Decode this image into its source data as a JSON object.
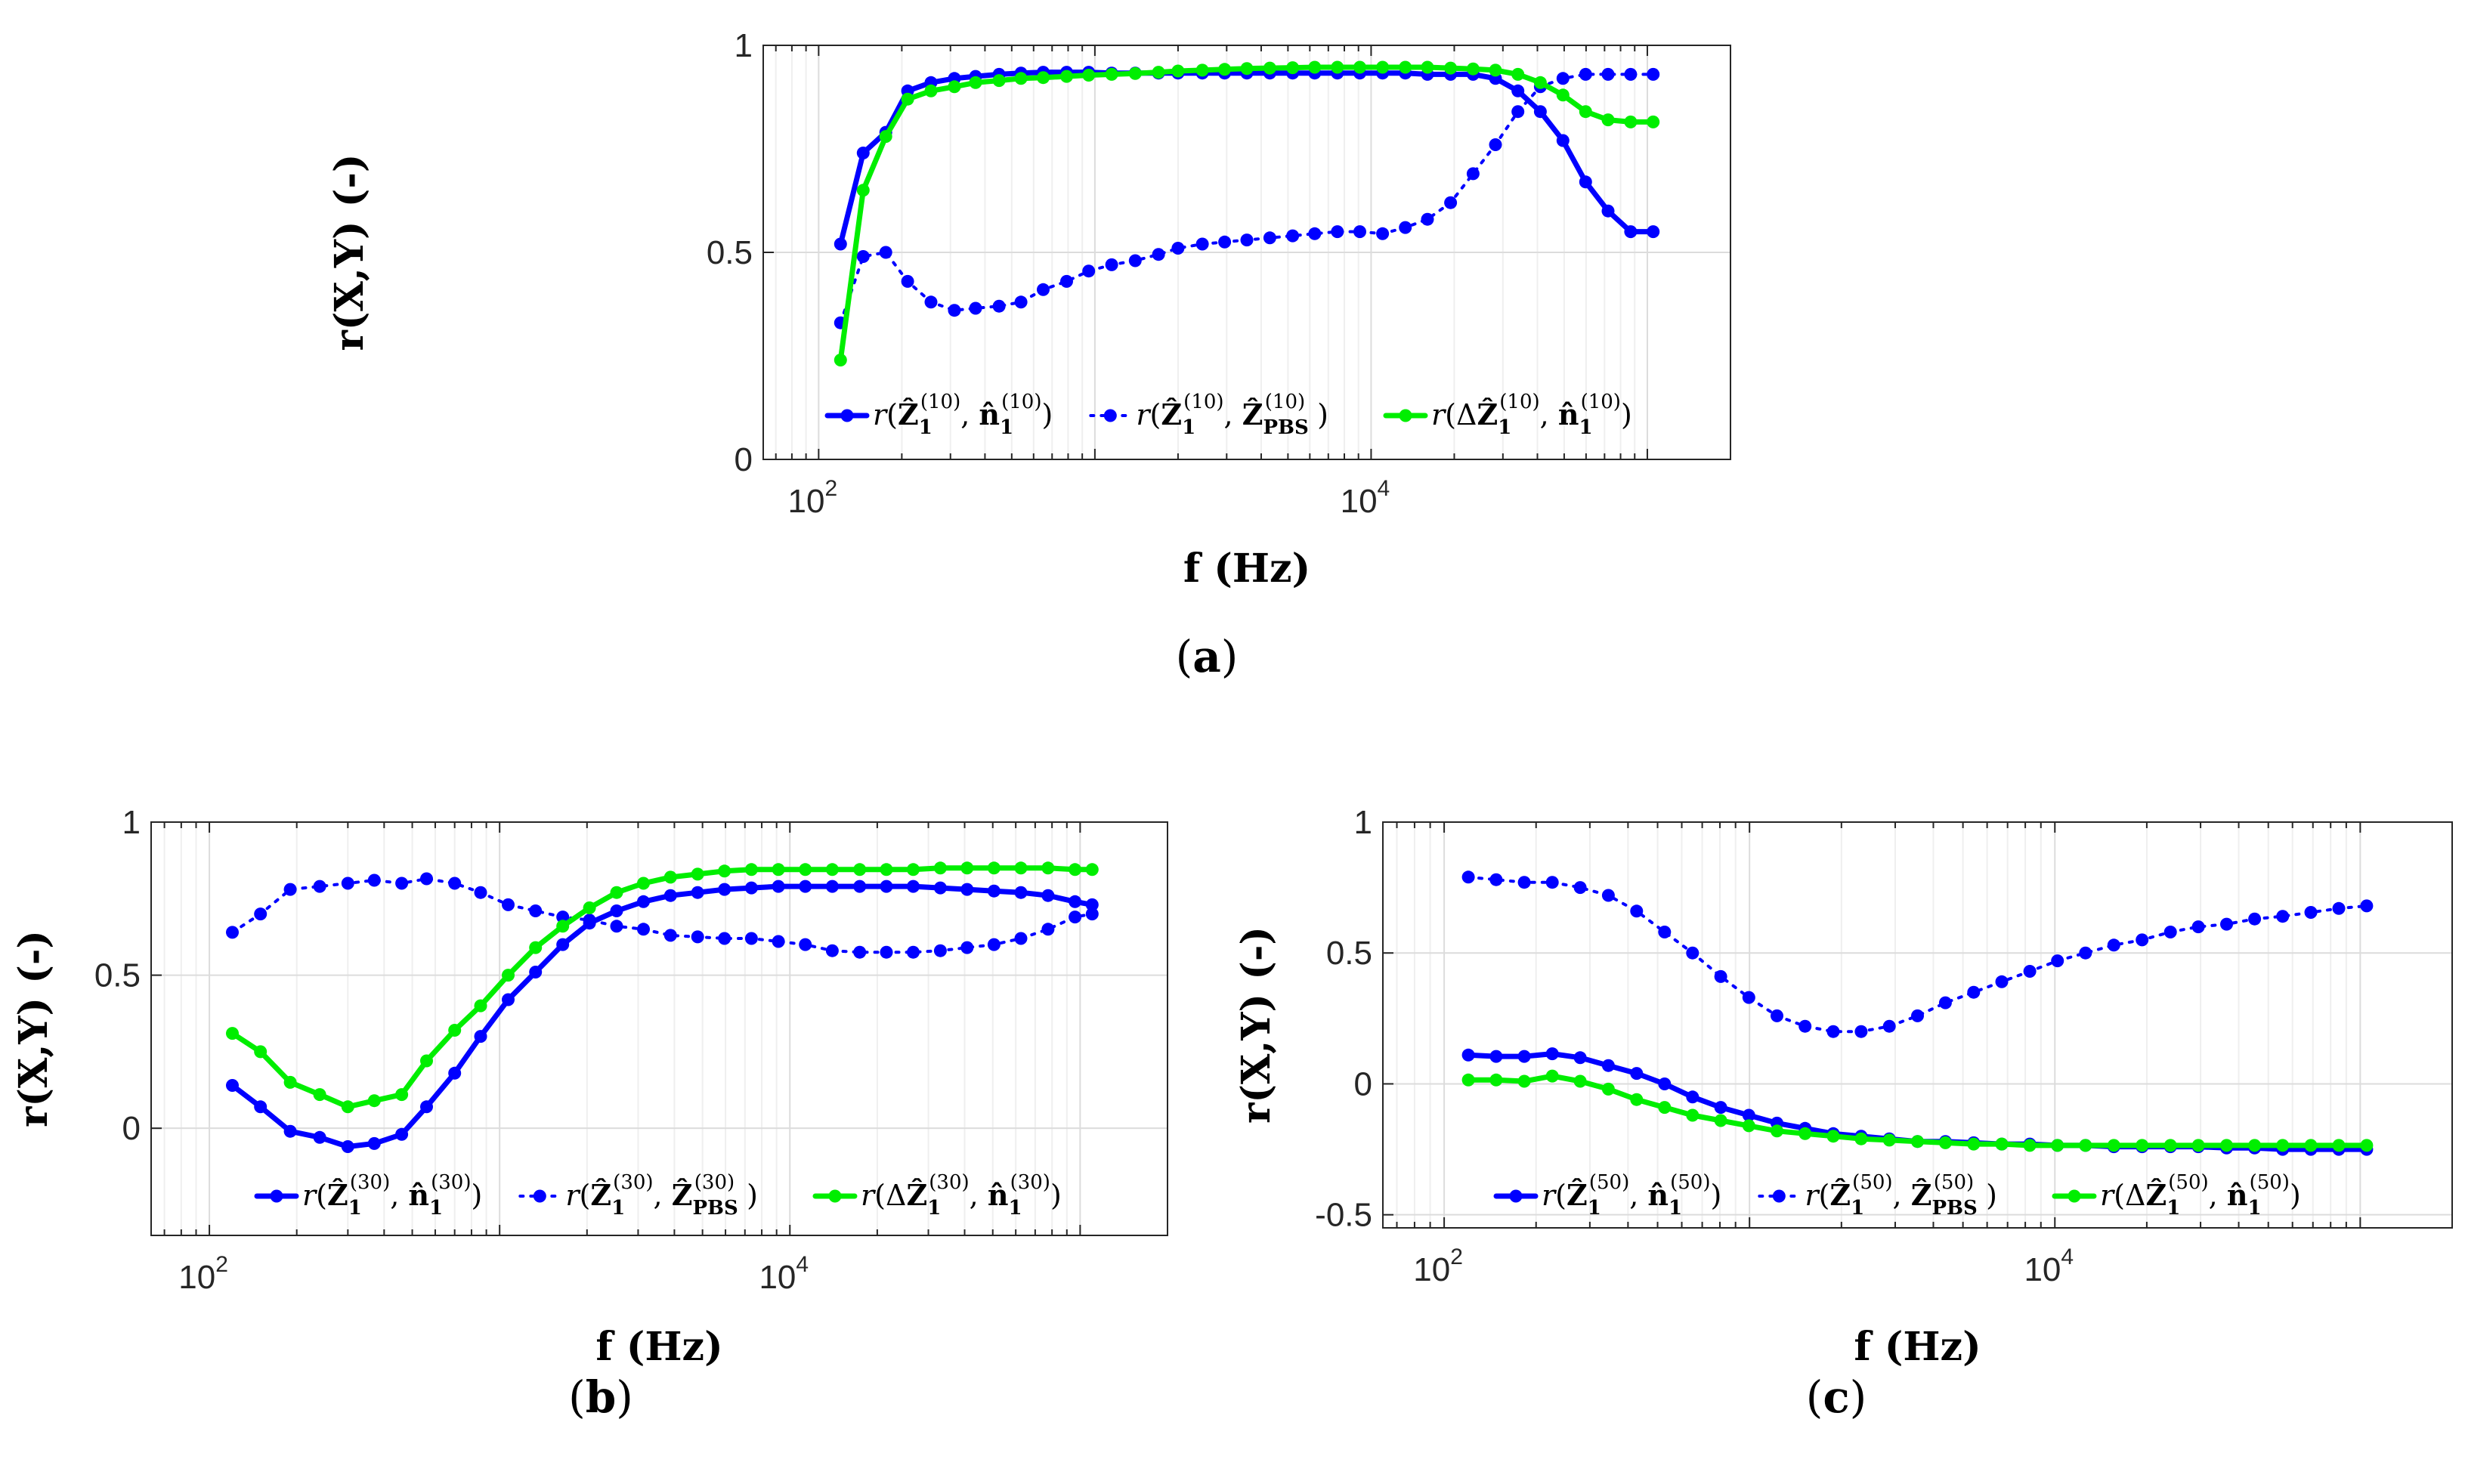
{
  "chart_data": [
    {
      "type": "line",
      "panel": "(a)",
      "xlabel": "f (Hz)",
      "ylabel": "r(X,Y) (-)",
      "xscale": "log",
      "xlim": [
        63,
        200000
      ],
      "ylim": [
        0,
        1
      ],
      "yticks": [
        0,
        0.5,
        1
      ],
      "ytick_labels": [
        "0",
        "0.5",
        "1"
      ],
      "xticks": [
        100,
        10000
      ],
      "xtick_labels": [
        "10",
        "10"
      ],
      "xtick_exponents": [
        "2",
        "4"
      ],
      "grid": true,
      "legend_position": "bottom-center",
      "x": [
        120,
        145,
        175,
        210,
        255,
        310,
        370,
        450,
        540,
        650,
        790,
        950,
        1150,
        1400,
        1700,
        2000,
        2450,
        2950,
        3550,
        4300,
        5200,
        6250,
        7550,
        9100,
        11000,
        13300,
        16000,
        19400,
        23400,
        28200,
        34000,
        41000,
        49500,
        59800,
        72100,
        87000,
        105000
      ],
      "series": [
        {
          "name": "r(Ẑ1(10), n̂1(10))",
          "color": "#0000ff",
          "style": "solid",
          "values": [
            0.52,
            0.74,
            0.79,
            0.89,
            0.91,
            0.92,
            0.925,
            0.93,
            0.933,
            0.935,
            0.935,
            0.935,
            0.933,
            0.933,
            0.933,
            0.933,
            0.933,
            0.933,
            0.933,
            0.933,
            0.933,
            0.933,
            0.933,
            0.933,
            0.933,
            0.933,
            0.93,
            0.93,
            0.93,
            0.92,
            0.89,
            0.84,
            0.77,
            0.67,
            0.6,
            0.55,
            0.55
          ]
        },
        {
          "name": "r(Ẑ1(10), ẐPBS(10))",
          "color": "#0000ff",
          "style": "dotted",
          "values": [
            0.33,
            0.49,
            0.5,
            0.43,
            0.38,
            0.36,
            0.365,
            0.37,
            0.38,
            0.41,
            0.43,
            0.455,
            0.47,
            0.48,
            0.495,
            0.51,
            0.52,
            0.525,
            0.53,
            0.535,
            0.54,
            0.545,
            0.55,
            0.55,
            0.545,
            0.56,
            0.58,
            0.62,
            0.69,
            0.76,
            0.84,
            0.9,
            0.92,
            0.93,
            0.93,
            0.93,
            0.93
          ]
        },
        {
          "name": "r(ΔẐ1(10), n̂1(10))",
          "color": "#00ee00",
          "style": "solid",
          "values": [
            0.24,
            0.65,
            0.78,
            0.87,
            0.89,
            0.9,
            0.91,
            0.915,
            0.92,
            0.922,
            0.925,
            0.928,
            0.93,
            0.932,
            0.935,
            0.938,
            0.94,
            0.942,
            0.944,
            0.945,
            0.946,
            0.947,
            0.947,
            0.947,
            0.947,
            0.947,
            0.947,
            0.945,
            0.943,
            0.94,
            0.93,
            0.91,
            0.88,
            0.84,
            0.82,
            0.815,
            0.815
          ]
        }
      ],
      "legend": {
        "entries": [
          {
            "func": "r",
            "open": "(",
            "lhs_pre": "",
            "lhs": "Ẑ",
            "lhs_sub": "1",
            "lhs_sup": "(10)",
            "comma": ", ",
            "rhs": "n̂",
            "rhs_sub": "1",
            "rhs_sup": "(10)",
            "close": ")"
          },
          {
            "func": "r",
            "open": "(",
            "lhs_pre": "",
            "lhs": "Ẑ",
            "lhs_sub": "1",
            "lhs_sup": "(10)",
            "comma": ", ",
            "rhs": "Ẑ",
            "rhs_sub": "PBS",
            "rhs_sup": "(10)",
            "close": ")"
          },
          {
            "func": "r",
            "open": "(",
            "lhs_pre": "Δ",
            "lhs": "Ẑ",
            "lhs_sub": "1",
            "lhs_sup": "(10)",
            "comma": ", ",
            "rhs": "n̂",
            "rhs_sub": "1",
            "rhs_sup": "(10)",
            "close": ")"
          }
        ]
      }
    },
    {
      "type": "line",
      "panel": "(b)",
      "xlabel": "f (Hz)",
      "ylabel": "r(X,Y) (-)",
      "xscale": "log",
      "xlim": [
        63,
        200000
      ],
      "ylim": [
        -0.35,
        1
      ],
      "yticks": [
        0,
        0.5,
        1
      ],
      "ytick_labels": [
        "0",
        "0.5",
        "1"
      ],
      "xticks": [
        100,
        10000
      ],
      "xtick_labels": [
        "10",
        "10"
      ],
      "xtick_exponents": [
        "2",
        "4"
      ],
      "grid": true,
      "legend_position": "bottom-center",
      "x": [
        120,
        150,
        190,
        240,
        300,
        370,
        460,
        560,
        700,
        860,
        1070,
        1330,
        1650,
        2040,
        2530,
        3130,
        3880,
        4810,
        5950,
        7370,
        9130,
        11300,
        14000,
        17400,
        21500,
        26600,
        33000,
        40800,
        50500,
        62500,
        77500,
        96000,
        110000
      ],
      "series": [
        {
          "name": "r(Ẑ1(30), n̂1(30))",
          "color": "#0000ff",
          "style": "solid",
          "values": [
            0.14,
            0.07,
            -0.01,
            -0.03,
            -0.06,
            -0.05,
            -0.02,
            0.07,
            0.18,
            0.3,
            0.42,
            0.51,
            0.6,
            0.67,
            0.71,
            0.74,
            0.76,
            0.77,
            0.78,
            0.785,
            0.79,
            0.79,
            0.79,
            0.79,
            0.79,
            0.79,
            0.785,
            0.78,
            0.775,
            0.77,
            0.76,
            0.74,
            0.73
          ]
        },
        {
          "name": "r(Ẑ1(30), ẐPBS(30))",
          "color": "#0000ff",
          "style": "dotted",
          "values": [
            0.64,
            0.7,
            0.78,
            0.79,
            0.8,
            0.81,
            0.8,
            0.815,
            0.8,
            0.77,
            0.73,
            0.71,
            0.69,
            0.68,
            0.66,
            0.65,
            0.63,
            0.625,
            0.62,
            0.62,
            0.61,
            0.6,
            0.58,
            0.575,
            0.575,
            0.575,
            0.58,
            0.59,
            0.6,
            0.62,
            0.65,
            0.69,
            0.7
          ]
        },
        {
          "name": "r(ΔẐ1(30), n̂1(30))",
          "color": "#00ee00",
          "style": "solid",
          "values": [
            0.31,
            0.25,
            0.15,
            0.11,
            0.07,
            0.09,
            0.11,
            0.22,
            0.32,
            0.4,
            0.5,
            0.59,
            0.66,
            0.72,
            0.77,
            0.8,
            0.82,
            0.83,
            0.84,
            0.845,
            0.845,
            0.845,
            0.845,
            0.845,
            0.845,
            0.845,
            0.85,
            0.85,
            0.85,
            0.85,
            0.85,
            0.845,
            0.845
          ]
        }
      ],
      "legend": {
        "entries": [
          {
            "func": "r",
            "open": "(",
            "lhs_pre": "",
            "lhs": "Ẑ",
            "lhs_sub": "1",
            "lhs_sup": "(30)",
            "comma": ", ",
            "rhs": "n̂",
            "rhs_sub": "1",
            "rhs_sup": "(30)",
            "close": ")"
          },
          {
            "func": "r",
            "open": "(",
            "lhs_pre": "",
            "lhs": "Ẑ",
            "lhs_sub": "1",
            "lhs_sup": "(30)",
            "comma": ", ",
            "rhs": "Ẑ",
            "rhs_sub": "PBS",
            "rhs_sup": "(30)",
            "close": ")"
          },
          {
            "func": "r",
            "open": "(",
            "lhs_pre": "Δ",
            "lhs": "Ẑ",
            "lhs_sub": "1",
            "lhs_sup": "(30)",
            "comma": ", ",
            "rhs": "n̂",
            "rhs_sub": "1",
            "rhs_sup": "(30)",
            "close": ")"
          }
        ]
      }
    },
    {
      "type": "line",
      "panel": "(c)",
      "xlabel": "f (Hz)",
      "ylabel": "r(X,Y) (-)",
      "xscale": "log",
      "xlim": [
        63,
        200000
      ],
      "ylim": [
        -0.55,
        1
      ],
      "yticks": [
        -0.5,
        0,
        0.5,
        1
      ],
      "ytick_labels": [
        "-0.5",
        "0",
        "0.5",
        "1"
      ],
      "xticks": [
        100,
        10000
      ],
      "xtick_labels": [
        "10",
        "10"
      ],
      "xtick_exponents": [
        "2",
        "4"
      ],
      "grid": true,
      "legend_position": "bottom-center",
      "x": [
        120,
        148,
        183,
        226,
        279,
        345,
        427,
        527,
        651,
        805,
        995,
        1230,
        1520,
        1880,
        2320,
        2870,
        3550,
        4380,
        5420,
        6700,
        8280,
        10200,
        12600,
        15600,
        19300,
        23900,
        29500,
        36500,
        45100,
        55700,
        68900,
        85100,
        105000
      ],
      "series": [
        {
          "name": "r(Ẑ1(50), n̂1(50))",
          "color": "#0000ff",
          "style": "solid",
          "values": [
            0.11,
            0.105,
            0.105,
            0.115,
            0.1,
            0.07,
            0.04,
            0.0,
            -0.05,
            -0.09,
            -0.12,
            -0.15,
            -0.17,
            -0.19,
            -0.2,
            -0.21,
            -0.22,
            -0.22,
            -0.225,
            -0.23,
            -0.23,
            -0.235,
            -0.235,
            -0.24,
            -0.24,
            -0.24,
            -0.24,
            -0.245,
            -0.245,
            -0.25,
            -0.25,
            -0.25,
            -0.25
          ]
        },
        {
          "name": "r(Ẑ1(50), ẐPBS(50))",
          "color": "#0000ff",
          "style": "dotted",
          "values": [
            0.79,
            0.78,
            0.77,
            0.77,
            0.75,
            0.72,
            0.66,
            0.58,
            0.5,
            0.41,
            0.33,
            0.26,
            0.22,
            0.2,
            0.2,
            0.22,
            0.26,
            0.31,
            0.35,
            0.39,
            0.43,
            0.47,
            0.5,
            0.53,
            0.55,
            0.58,
            0.6,
            0.61,
            0.63,
            0.64,
            0.655,
            0.67,
            0.68
          ]
        },
        {
          "name": "r(ΔẐ1(50), n̂1(50))",
          "color": "#00ee00",
          "style": "solid",
          "values": [
            0.015,
            0.015,
            0.01,
            0.03,
            0.01,
            -0.02,
            -0.06,
            -0.09,
            -0.12,
            -0.14,
            -0.16,
            -0.18,
            -0.19,
            -0.2,
            -0.21,
            -0.215,
            -0.22,
            -0.225,
            -0.23,
            -0.23,
            -0.235,
            -0.235,
            -0.235,
            -0.235,
            -0.235,
            -0.235,
            -0.235,
            -0.235,
            -0.235,
            -0.235,
            -0.235,
            -0.235,
            -0.235
          ]
        }
      ],
      "legend": {
        "entries": [
          {
            "func": "r",
            "open": "(",
            "lhs_pre": "",
            "lhs": "Ẑ",
            "lhs_sub": "1",
            "lhs_sup": "(50)",
            "comma": ", ",
            "rhs": "n̂",
            "rhs_sub": "1",
            "rhs_sup": "(50)",
            "close": ")"
          },
          {
            "func": "r",
            "open": "(",
            "lhs_pre": "",
            "lhs": "Ẑ",
            "lhs_sub": "1",
            "lhs_sup": "(50)",
            "comma": ", ",
            "rhs": "Ẑ",
            "rhs_sub": "PBS",
            "rhs_sup": "(50)",
            "close": ")"
          },
          {
            "func": "r",
            "open": "(",
            "lhs_pre": "Δ",
            "lhs": "Ẑ",
            "lhs_sub": "1",
            "lhs_sup": "(50)",
            "comma": ", ",
            "rhs": "n̂",
            "rhs_sub": "1",
            "rhs_sup": "(50)",
            "close": ")"
          }
        ]
      }
    }
  ],
  "panel_labels": [
    {
      "open": "(",
      "letter": "a",
      "close": ")"
    },
    {
      "open": "(",
      "letter": "b",
      "close": ")"
    },
    {
      "open": "(",
      "letter": "c",
      "close": ")"
    }
  ],
  "colors": {
    "primary": "#0000ff",
    "secondary": "#00ee00",
    "grid": "#e6e6e6",
    "axis": "#262626"
  }
}
